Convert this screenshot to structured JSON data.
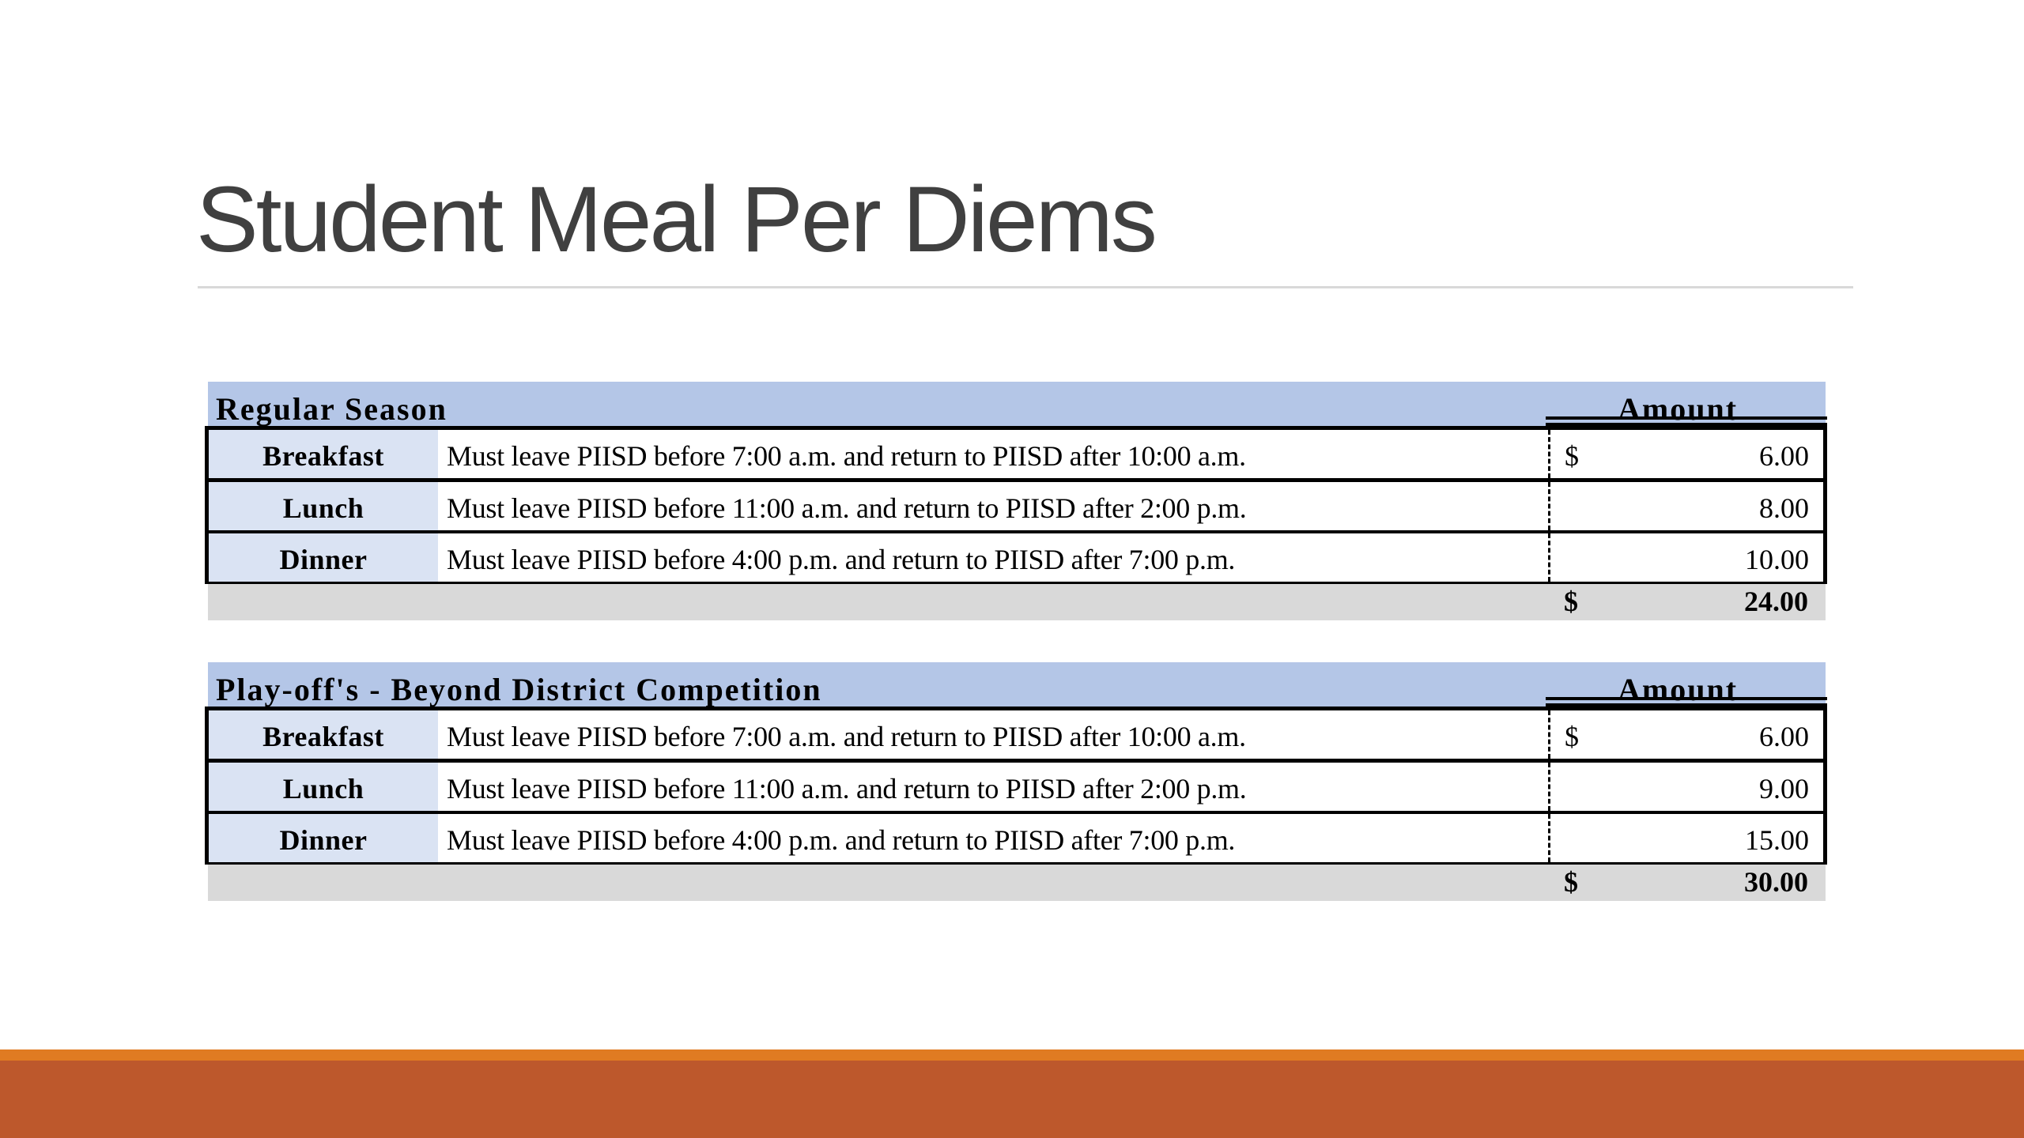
{
  "slide": {
    "title": "Student Meal Per Diems"
  },
  "tables": [
    {
      "heading": "Regular Season",
      "amount_header": "Amount",
      "rows": [
        {
          "meal": "Breakfast",
          "description": "Must leave PIISD before 7:00 a.m. and return to PIISD after 10:00 a.m.",
          "currency": "$",
          "amount": "6.00"
        },
        {
          "meal": "Lunch",
          "description": "Must leave PIISD before 11:00 a.m. and return to PIISD after 2:00 p.m.",
          "currency": "",
          "amount": "8.00"
        },
        {
          "meal": "Dinner",
          "description": "Must leave PIISD before 4:00 p.m. and return to PIISD after 7:00 p.m.",
          "currency": "",
          "amount": "10.00"
        }
      ],
      "total": {
        "currency": "$",
        "amount": "24.00"
      }
    },
    {
      "heading": "Play-off's - Beyond District Competition",
      "amount_header": "Amount",
      "rows": [
        {
          "meal": "Breakfast",
          "description": "Must leave PIISD before 7:00 a.m. and return to PIISD after 10:00 a.m.",
          "currency": "$",
          "amount": "6.00"
        },
        {
          "meal": "Lunch",
          "description": "Must leave PIISD before 11:00 a.m. and return to PIISD after 2:00 p.m.",
          "currency": "",
          "amount": "9.00"
        },
        {
          "meal": "Dinner",
          "description": "Must leave PIISD before 4:00 p.m. and return to PIISD after 7:00 p.m.",
          "currency": "",
          "amount": "15.00"
        }
      ],
      "total": {
        "currency": "$",
        "amount": "30.00"
      }
    }
  ],
  "theme": {
    "title_color": "#404040",
    "header_fill": "#b4c6e7",
    "meal_cell_fill": "#dae3f3",
    "total_fill": "#d9d9d9",
    "footer_stripe": "#e07b22",
    "footer_bar": "#bd582c"
  }
}
